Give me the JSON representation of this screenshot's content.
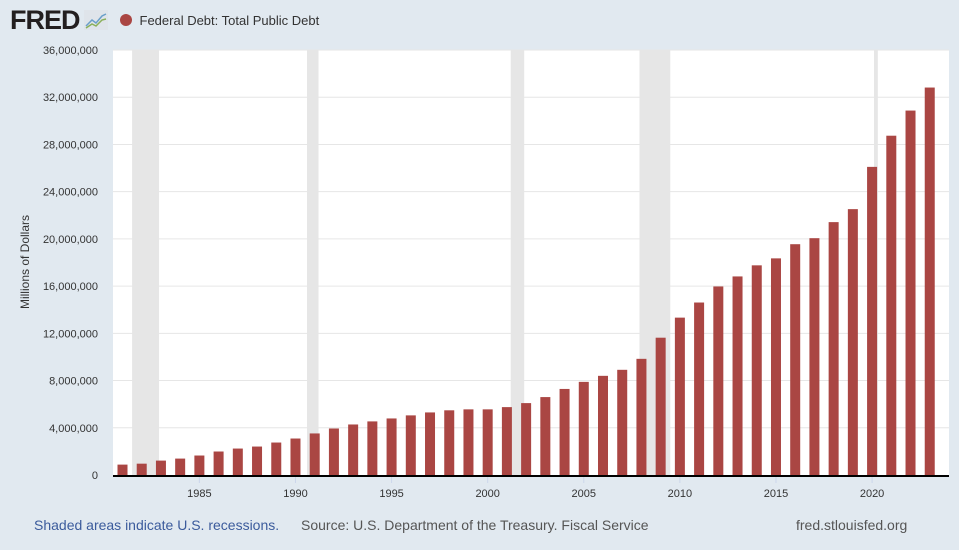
{
  "header": {
    "logo": "FRED",
    "series_title": "Federal Debt: Total Public Debt"
  },
  "footer": {
    "recession_note": "Shaded areas indicate U.S. recessions.",
    "source": "Source: U.S. Department of the Treasury. Fiscal Service",
    "site": "fred.stlouisfed.org"
  },
  "colors": {
    "bar": "#aa4643",
    "recession": "#e6e6e6",
    "note": "#3b5b9c"
  },
  "chart_data": {
    "type": "bar",
    "title": "Federal Debt: Total Public Debt",
    "xlabel": "",
    "ylabel": "Millions of Dollars",
    "ylim": [
      0,
      36000000
    ],
    "yticks": [
      0,
      4000000,
      8000000,
      12000000,
      16000000,
      20000000,
      24000000,
      28000000,
      32000000,
      36000000
    ],
    "ytick_labels": [
      "0",
      "4,000,000",
      "8,000,000",
      "12,000,000",
      "16,000,000",
      "20,000,000",
      "24,000,000",
      "28,000,000",
      "32,000,000",
      "36,000,000"
    ],
    "xticks": [
      "1985",
      "1990",
      "1995",
      "2000",
      "2005",
      "2010",
      "2015",
      "2020"
    ],
    "x": [
      1981,
      1982,
      1983,
      1984,
      1985,
      1986,
      1987,
      1988,
      1989,
      1990,
      1991,
      1992,
      1993,
      1994,
      1995,
      1996,
      1997,
      1998,
      1999,
      2000,
      2001,
      2002,
      2003,
      2004,
      2005,
      2006,
      2007,
      2008,
      2009,
      2010,
      2011,
      2012,
      2013,
      2014,
      2015,
      2016,
      2017,
      2018,
      2019,
      2020,
      2021,
      2022,
      2023
    ],
    "values": [
      880000,
      960000,
      1220000,
      1390000,
      1650000,
      1990000,
      2240000,
      2410000,
      2750000,
      3090000,
      3520000,
      3940000,
      4280000,
      4540000,
      4790000,
      5050000,
      5300000,
      5480000,
      5560000,
      5560000,
      5750000,
      6090000,
      6600000,
      7290000,
      7890000,
      8400000,
      8910000,
      9840000,
      11630000,
      13330000,
      14610000,
      15970000,
      16820000,
      17760000,
      18350000,
      19550000,
      20060000,
      21420000,
      22520000,
      26100000,
      28740000,
      30870000,
      32820000
    ],
    "recessions": [
      [
        1981.5,
        1982.9
      ],
      [
        1990.6,
        1991.2
      ],
      [
        2001.2,
        2001.9
      ],
      [
        2007.9,
        2009.5
      ],
      [
        2020.1,
        2020.3
      ]
    ],
    "grid": true,
    "legend": "top-left"
  }
}
